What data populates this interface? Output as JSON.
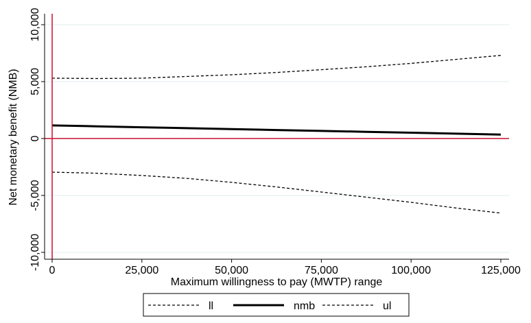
{
  "chart_data": {
    "type": "line",
    "title": "",
    "xlabel": "Maximum willingness to pay (MWTP) range",
    "ylabel": "Net monetary benefit (NMB)",
    "xlim": [
      0,
      125000
    ],
    "ylim": [
      -10000,
      10000
    ],
    "x_ticks": [
      0,
      25000,
      50000,
      75000,
      100000,
      125000
    ],
    "x_tick_labels": [
      "0",
      "25,000",
      "50,000",
      "75,000",
      "100,000",
      "125,000"
    ],
    "y_ticks": [
      -10000,
      -5000,
      0,
      5000,
      10000
    ],
    "y_tick_labels": [
      "-10,000",
      "-5,000",
      "0",
      "5,000",
      "10,000"
    ],
    "x": [
      0,
      12500,
      25000,
      37500,
      50000,
      62500,
      75000,
      87500,
      100000,
      112500,
      125000
    ],
    "series": [
      {
        "name": "ll",
        "style": "dashed",
        "values": [
          -2950,
          -3050,
          -3250,
          -3500,
          -3850,
          -4250,
          -4700,
          -5150,
          -5600,
          -6100,
          -6550
        ]
      },
      {
        "name": "nmb",
        "style": "solid",
        "values": [
          1150,
          1070,
          990,
          910,
          830,
          750,
          670,
          590,
          510,
          430,
          350
        ]
      },
      {
        "name": "ul",
        "style": "dashed",
        "values": [
          5300,
          5270,
          5300,
          5450,
          5600,
          5800,
          6050,
          6300,
          6600,
          6950,
          7300
        ]
      }
    ],
    "reference_lines": {
      "x": 0,
      "y": 0,
      "color": "#c8102e"
    },
    "legend_position": "bottom",
    "grid": true
  }
}
